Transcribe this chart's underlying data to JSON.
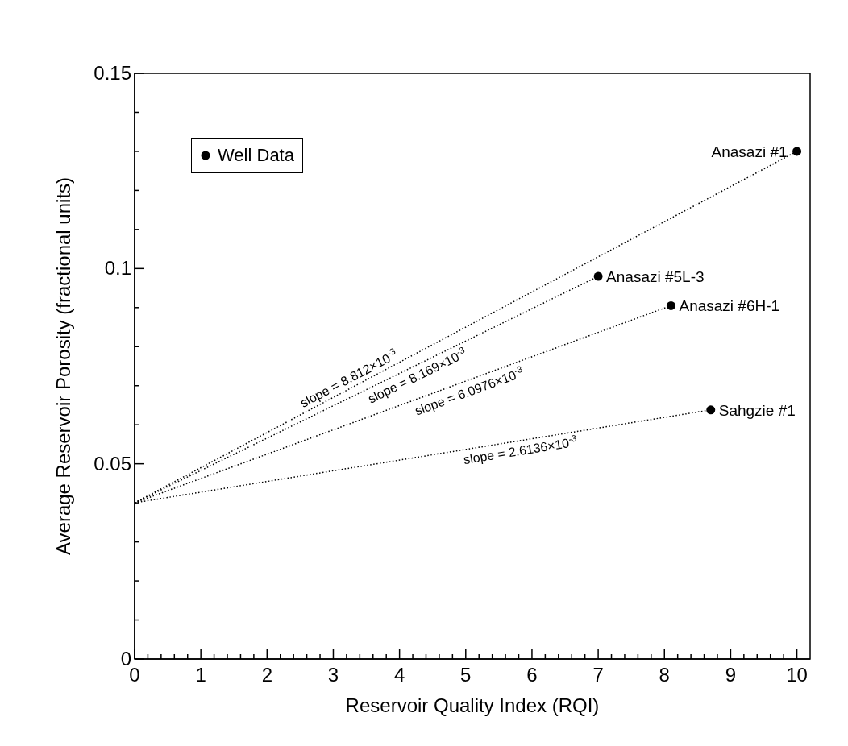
{
  "chart_data": {
    "type": "scatter",
    "xlabel": "Reservoir Quality Index (RQI)",
    "ylabel": "Average Reservoir Porosity (fractional units)",
    "xlim": [
      0,
      10.2
    ],
    "ylim": [
      0,
      0.15
    ],
    "xticks": [
      0,
      {
        "value": 0.2,
        "label": null
      },
      {
        "value": 0.4,
        "label": null
      },
      {
        "value": 0.6,
        "label": null
      },
      {
        "value": 0.8,
        "label": null
      },
      1,
      {
        "value": 1.2,
        "label": null
      },
      {
        "value": 1.4,
        "label": null
      },
      {
        "value": 1.6,
        "label": null
      },
      {
        "value": 1.8,
        "label": null
      },
      2,
      {
        "value": 2.2,
        "label": null
      },
      {
        "value": 2.4,
        "label": null
      },
      {
        "value": 2.6,
        "label": null
      },
      {
        "value": 2.8,
        "label": null
      },
      3,
      {
        "value": 3.2,
        "label": null
      },
      {
        "value": 3.4,
        "label": null
      },
      {
        "value": 3.6,
        "label": null
      },
      {
        "value": 3.8,
        "label": null
      },
      4,
      {
        "value": 4.2,
        "label": null
      },
      {
        "value": 4.4,
        "label": null
      },
      {
        "value": 4.6,
        "label": null
      },
      {
        "value": 4.8,
        "label": null
      },
      5,
      {
        "value": 5.2,
        "label": null
      },
      {
        "value": 5.4,
        "label": null
      },
      {
        "value": 5.6,
        "label": null
      },
      {
        "value": 5.8,
        "label": null
      },
      6,
      {
        "value": 6.2,
        "label": null
      },
      {
        "value": 6.4,
        "label": null
      },
      {
        "value": 6.6,
        "label": null
      },
      {
        "value": 6.8,
        "label": null
      },
      7,
      {
        "value": 7.2,
        "label": null
      },
      {
        "value": 7.4,
        "label": null
      },
      {
        "value": 7.6,
        "label": null
      },
      {
        "value": 7.8,
        "label": null
      },
      8,
      {
        "value": 8.2,
        "label": null
      },
      {
        "value": 8.4,
        "label": null
      },
      {
        "value": 8.6,
        "label": null
      },
      {
        "value": 8.8,
        "label": null
      },
      9,
      {
        "value": 9.2,
        "label": null
      },
      {
        "value": 9.4,
        "label": null
      },
      {
        "value": 9.6,
        "label": null
      },
      {
        "value": 9.8,
        "label": null
      },
      10
    ],
    "yticks": [
      0,
      {
        "value": 0.01,
        "label": null
      },
      {
        "value": 0.02,
        "label": null
      },
      {
        "value": 0.03,
        "label": null
      },
      {
        "value": 0.04,
        "label": null
      },
      0.05,
      {
        "value": 0.06,
        "label": null
      },
      {
        "value": 0.07,
        "label": null
      },
      {
        "value": 0.08,
        "label": null
      },
      {
        "value": 0.09,
        "label": null
      },
      0.1,
      {
        "value": 0.11,
        "label": null
      },
      {
        "value": 0.12,
        "label": null
      },
      {
        "value": 0.13,
        "label": null
      },
      {
        "value": 0.14,
        "label": null
      },
      0.15
    ],
    "grid": false,
    "legend": "top left",
    "series": [
      {
        "name": "Well Data",
        "color": "#000000",
        "marker": "circle",
        "x": [
          10.0,
          7.0,
          8.1,
          8.7
        ],
        "values": [
          0.13,
          0.098,
          0.0905,
          0.0638
        ]
      },
      {
        "type": "line",
        "color": "#000000",
        "line_style": "dotted",
        "x": [
          0,
          10.0
        ],
        "values": [
          0.04,
          0.13
        ]
      },
      {
        "type": "line",
        "color": "#000000",
        "line_style": "dotted",
        "x": [
          0,
          7.0
        ],
        "values": [
          0.04,
          0.098
        ]
      },
      {
        "type": "line",
        "color": "#000000",
        "line_style": "dotted",
        "x": [
          0,
          8.1
        ],
        "values": [
          0.04,
          0.0905
        ]
      },
      {
        "type": "line",
        "color": "#000000",
        "line_style": "dotted",
        "x": [
          0,
          8.7
        ],
        "values": [
          0.04,
          0.0638
        ]
      }
    ],
    "annotations": [
      {
        "text": "Anasazi #1",
        "x": 10.0,
        "y": 0.13
      },
      {
        "text": "Anasazi #5L-3",
        "x": 7.0,
        "y": 0.098
      },
      {
        "text": "Anasazi #6H-1",
        "x": 8.1,
        "y": 0.0905
      },
      {
        "text": "Sahgzie #1",
        "x": 8.7,
        "y": 0.0638
      },
      {
        "text": "slope = 8.812×10$^{-3}$",
        "x": 3.3,
        "y": 0.0697
      },
      {
        "text": "slope = 8.169×10$^{-3}$",
        "x": 4.2,
        "y": 0.0748
      },
      {
        "text": "slope = 6.0976×10$^{-3}$",
        "x": 5.0,
        "y": 0.0709
      },
      {
        "text": "slope = 2.6136×10$^{-3}$",
        "x": 5.8,
        "y": 0.0559
      }
    ]
  }
}
